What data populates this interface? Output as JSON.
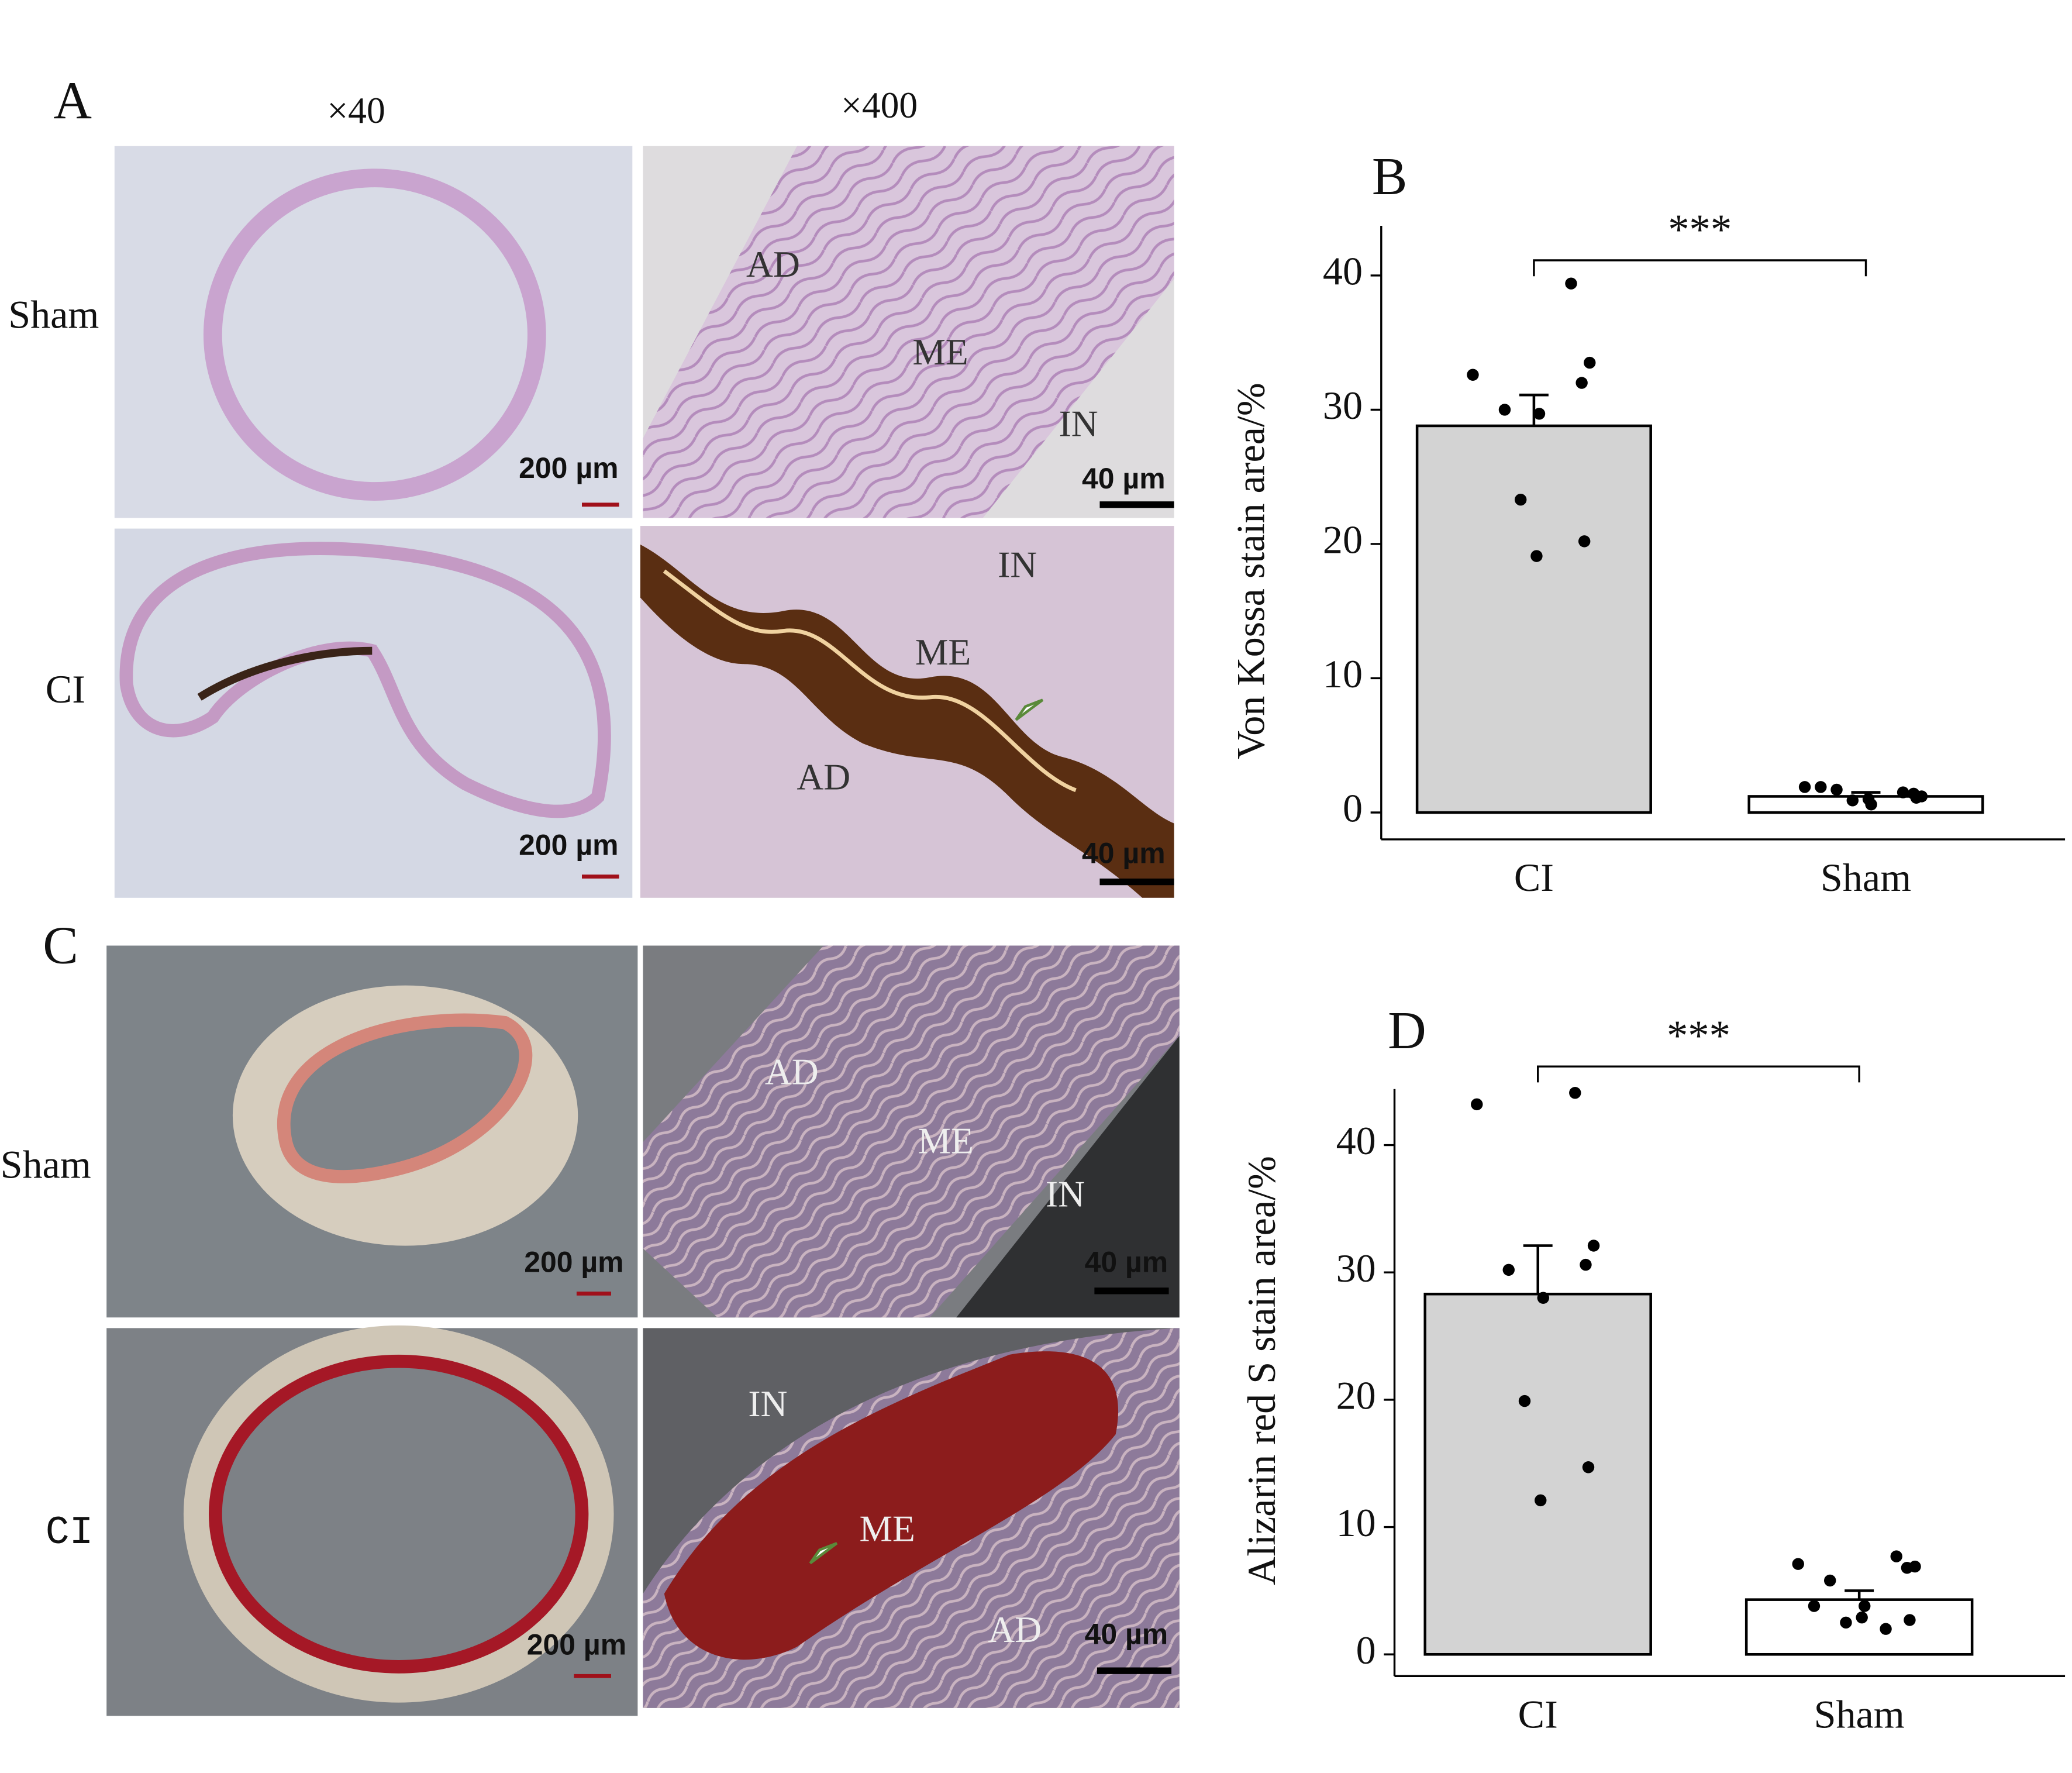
{
  "panel_a": {
    "label": "A",
    "columns": [
      "×40",
      "×400"
    ],
    "rows": [
      "Sham",
      "CI"
    ],
    "scale_bars": [
      "200 µm",
      "40 µm",
      "200 µm",
      "40 µm"
    ],
    "annotations": [
      [
        "AD",
        "ME",
        "IN"
      ],
      [
        "IN",
        "ME",
        "AD"
      ]
    ]
  },
  "panel_c": {
    "label": "C",
    "rows": [
      "Sham",
      "CI"
    ],
    "scale_bars": [
      "200 µm",
      "40 µm",
      "200 µm",
      "40 µm"
    ],
    "annotations": [
      [
        "AD",
        "ME",
        "IN"
      ],
      [
        "IN",
        "ME",
        "AD"
      ]
    ]
  },
  "chart_data": [
    {
      "type": "bar",
      "panel_label": "B",
      "ylabel": "Von Kossa stain area/%",
      "categories": [
        "CI",
        "Sham"
      ],
      "values": [
        28.8,
        1.2
      ],
      "errors": [
        2.3,
        0.3
      ],
      "points": [
        [
          32.6,
          39.4,
          33.5,
          32.0,
          30.0,
          29.7,
          23.3,
          20.2,
          19.1
        ],
        [
          1.9,
          1.5,
          1.2,
          1.4,
          1.7,
          0.6,
          0.9,
          1.1,
          1.0,
          1.9
        ]
      ],
      "colors": [
        "#d3d3d3",
        "#ffffff"
      ],
      "significance": "***",
      "ylim": [
        -2,
        43.7
      ],
      "yticks": [
        0,
        10,
        20,
        30,
        40
      ]
    },
    {
      "type": "bar",
      "panel_label": "D",
      "ylabel": "Alizarin red S stain area/%",
      "categories": [
        "CI",
        "Sham"
      ],
      "values": [
        28.3,
        4.3
      ],
      "errors": [
        3.8,
        0.7
      ],
      "points": [
        [
          43.2,
          44.1,
          32.1,
          30.6,
          30.2,
          28.0,
          19.9,
          14.7,
          12.1
        ],
        [
          7.1,
          7.7,
          6.9,
          6.8,
          5.8,
          3.8,
          2.5,
          2.7,
          2.9,
          3.8,
          2.0
        ]
      ],
      "colors": [
        "#d3d3d3",
        "#ffffff"
      ],
      "significance": "***",
      "ylim": [
        -1.7,
        44.4
      ],
      "yticks": [
        0,
        10,
        20,
        30,
        40
      ]
    }
  ]
}
